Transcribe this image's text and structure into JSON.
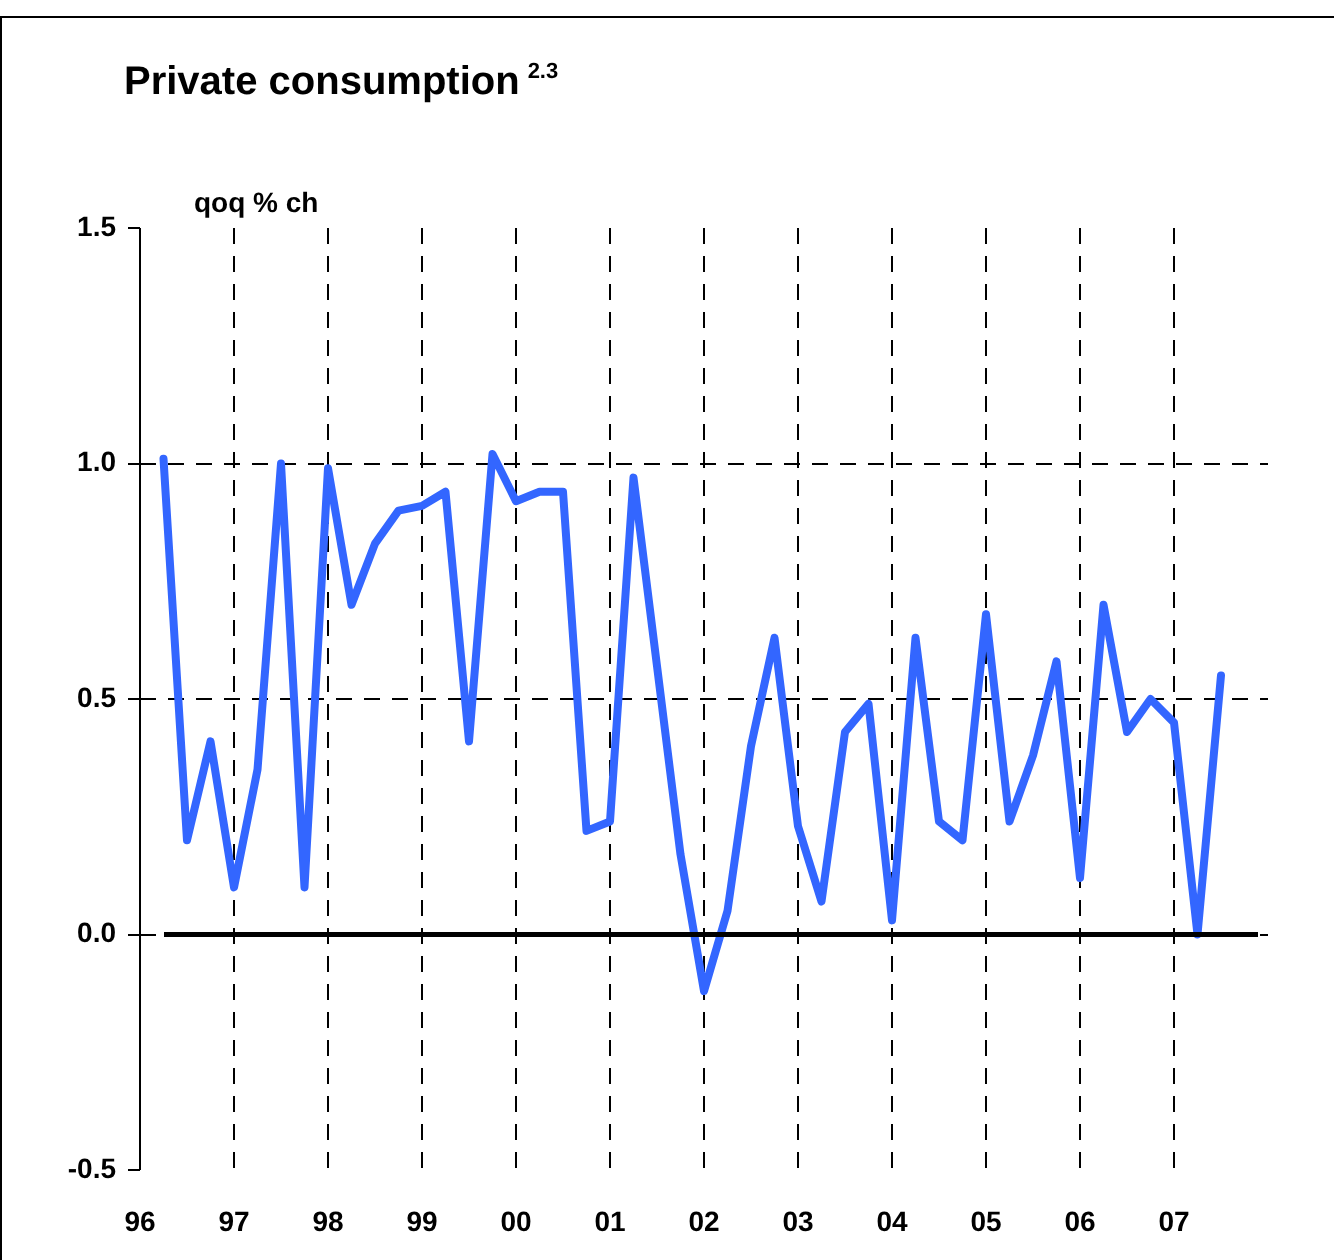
{
  "chart_data": {
    "type": "line",
    "title": "Private consumption$^{2.3}$",
    "ylabel": "qoq % ch",
    "x": [
      1996.25,
      1996.5,
      1996.75,
      1997,
      1997.25,
      1997.5,
      1997.75,
      1998,
      1998.25,
      1998.5,
      1998.75,
      1999,
      1999.25,
      1999.5,
      1999.75,
      2000,
      2000.25,
      2000.5,
      2000.75,
      2001,
      2001.25,
      2001.5,
      2001.75,
      2002,
      2002.25,
      2002.5,
      2002.75,
      2003,
      2003.25,
      2003.5,
      2003.75,
      2004,
      2004.25,
      2004.5,
      2004.75,
      2005,
      2005.25,
      2005.5,
      2005.75,
      2006,
      2006.25,
      2006.5,
      2006.75,
      2007,
      2007.25,
      2007.5
    ],
    "series": [
      {
        "color": "#3366ff",
        "values": [
          1.01,
          0.2,
          0.41,
          0.1,
          0.35,
          1.0,
          0.1,
          0.99,
          0.7,
          0.83,
          0.9,
          0.91,
          0.94,
          0.41,
          1.02,
          0.92,
          0.94,
          0.94,
          0.22,
          0.24,
          0.97,
          0.57,
          0.17,
          -0.12,
          0.05,
          0.4,
          0.63,
          0.23,
          0.07,
          0.43,
          0.49,
          0.03,
          0.63,
          0.24,
          0.2,
          0.68,
          0.24,
          0.38,
          0.58,
          0.12,
          0.7,
          0.43,
          0.5,
          0.45,
          0.0,
          0.55
        ]
      }
    ],
    "xlim": [
      1996,
      2008
    ],
    "xticks": [
      {
        "value": 1996,
        "label": "96"
      },
      {
        "value": 1997,
        "label": "97"
      },
      {
        "value": 1998,
        "label": "98"
      },
      {
        "value": 1999,
        "label": "99"
      },
      {
        "value": 2000,
        "label": "00"
      },
      {
        "value": 2001,
        "label": "01"
      },
      {
        "value": 2002,
        "label": "02"
      },
      {
        "value": 2003,
        "label": "03"
      },
      {
        "value": 2004,
        "label": "04"
      },
      {
        "value": 2005,
        "label": "05"
      },
      {
        "value": 2006,
        "label": "06"
      },
      {
        "value": 2007,
        "label": "07"
      }
    ],
    "ylim": [
      -0.5,
      1.5
    ],
    "yticks": [
      {
        "value": -0.5,
        "label": "-0.5"
      },
      {
        "value": 0,
        "label": "0.0"
      },
      {
        "value": 0.5,
        "label": "0.5"
      },
      {
        "value": 1,
        "label": "1.0"
      },
      {
        "value": 1.5,
        "label": "1.5"
      }
    ],
    "ref_lines": [
      {
        "axis": "y",
        "value": 0,
        "color": "#000000"
      }
    ],
    "grid": true,
    "legend": false,
    "marker": "none",
    "line_style": "solid"
  }
}
